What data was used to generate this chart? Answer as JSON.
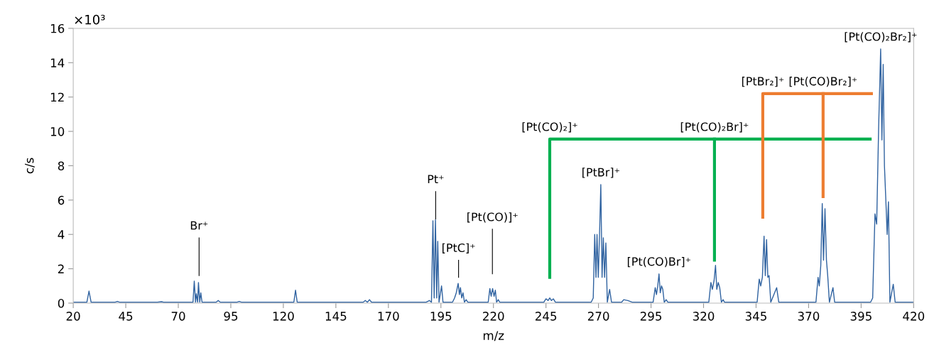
{
  "chart_data": {
    "type": "line",
    "xlabel": "m/z",
    "ylabel": "c/s",
    "xlim": [
      20,
      420
    ],
    "xticks": [
      20,
      45,
      70,
      95,
      120,
      145,
      170,
      195,
      220,
      245,
      270,
      295,
      320,
      345,
      370,
      395,
      420
    ],
    "ylim": [
      0,
      16
    ],
    "yticks": [
      0,
      2,
      4,
      6,
      8,
      10,
      12,
      14,
      16
    ],
    "grid": false,
    "legend": false,
    "marker": "none",
    "line_style": "solid",
    "series": [
      {
        "color": "#2f62a0",
        "x": [
          20,
          26.5,
          27.5,
          28.5,
          40,
          41,
          42,
          60,
          62,
          63,
          77,
          77.6,
          78.2,
          78.6,
          79.2,
          79.6,
          80.2,
          80.7,
          81.3,
          88,
          89,
          90,
          98,
          99,
          100,
          125,
          125.8,
          126.6,
          158,
          159,
          160,
          161,
          162,
          188,
          189.5,
          190.5,
          191.2,
          191.8,
          192.4,
          193.0,
          193.5,
          194.1,
          195.3,
          196,
          200.5,
          201.5,
          202.3,
          203.2,
          203.8,
          204.3,
          204.9,
          205.5,
          206.2,
          207,
          207.8,
          217.5,
          218.3,
          218.9,
          219.6,
          220.3,
          220.9,
          221.5,
          222.3,
          223,
          244,
          245,
          246,
          246.8,
          247.6,
          248.5,
          249.5,
          266.5,
          267.5,
          268.2,
          268.8,
          269.3,
          269.9,
          270.5,
          271.1,
          271.7,
          272.3,
          272.9,
          273.5,
          274.2,
          275.3,
          276.2,
          281,
          282,
          284,
          286,
          296,
          297,
          297.6,
          298.2,
          298.8,
          299.4,
          300,
          300.6,
          301.3,
          302.2,
          303,
          322.5,
          323.5,
          324.2,
          325,
          325.7,
          326.3,
          327,
          327.7,
          328.5,
          329.3,
          330,
          345.5,
          346.5,
          347.2,
          348,
          348.8,
          349.4,
          350,
          350.6,
          351.2,
          352,
          354.8,
          355.8,
          373.5,
          374.5,
          375.1,
          375.8,
          376.5,
          377.1,
          377.8,
          378.5,
          379.1,
          379.9,
          381.6,
          382.4,
          399.5,
          400.5,
          401.6,
          402.4,
          403.3,
          404.3,
          404.9,
          405.5,
          406.1,
          406.8,
          407.4,
          408,
          408.7,
          410.3,
          411.2,
          420
        ],
        "values": [
          0.05,
          0.05,
          0.7,
          0.05,
          0.05,
          0.1,
          0.05,
          0.05,
          0.08,
          0.05,
          0.05,
          1.28,
          0.05,
          0.55,
          0.05,
          1.2,
          0.05,
          0.6,
          0.05,
          0.05,
          0.15,
          0.05,
          0.05,
          0.1,
          0.05,
          0.05,
          0.75,
          0.05,
          0.05,
          0.15,
          0.05,
          0.2,
          0.05,
          0.05,
          0.15,
          0.05,
          4.8,
          0.3,
          4.85,
          0.3,
          3.6,
          0.05,
          1.0,
          0.05,
          0.05,
          0.3,
          0.6,
          1.15,
          0.5,
          0.9,
          0.3,
          0.6,
          0.05,
          0.2,
          0.05,
          0.05,
          0.85,
          0.4,
          0.85,
          0.4,
          0.75,
          0.05,
          0.2,
          0.05,
          0.05,
          0.25,
          0.15,
          0.3,
          0.15,
          0.25,
          0.05,
          0.05,
          0.3,
          4.0,
          1.5,
          4.0,
          1.5,
          4.0,
          6.9,
          1.5,
          3.8,
          1.5,
          3.5,
          0.05,
          0.8,
          0.05,
          0.05,
          0.2,
          0.15,
          0.05,
          0.05,
          0.9,
          0.5,
          1.0,
          1.7,
          0.6,
          1.0,
          0.8,
          0.05,
          0.2,
          0.05,
          0.05,
          1.2,
          0.8,
          1.3,
          2.2,
          0.8,
          1.2,
          0.9,
          0.05,
          0.2,
          0.05,
          0.05,
          1.4,
          1.0,
          1.5,
          3.9,
          1.6,
          3.7,
          1.5,
          1.6,
          0.05,
          0.9,
          0.05,
          0.05,
          1.5,
          1.0,
          2.2,
          5.8,
          2.5,
          5.5,
          2.5,
          1.6,
          0.05,
          0.9,
          0.05,
          0.05,
          0.3,
          5.2,
          4.6,
          10.0,
          14.8,
          9.5,
          13.9,
          8.0,
          5.9,
          4.0,
          5.9,
          0.05,
          1.1,
          0.05,
          0.05
        ]
      },
      {
        "color": "#00b050",
        "x": [
          246.8,
          246.8,
          399.3
        ],
        "values": [
          1.5,
          9.55,
          9.55
        ]
      },
      {
        "color": "#00b050",
        "x": [
          325.2,
          325.2
        ],
        "values": [
          9.55,
          2.5
        ]
      },
      {
        "color": "#ed7d31",
        "x": [
          348.2,
          348.2,
          399.9
        ],
        "values": [
          5.0,
          12.2,
          12.2
        ]
      },
      {
        "color": "#ed7d31",
        "x": [
          376.9,
          376.9
        ],
        "values": [
          12.2,
          6.2
        ]
      },
      {
        "color": "#000000",
        "x": [
          79.9,
          79.9
        ],
        "values": [
          3.8,
          1.6
        ]
      },
      {
        "color": "#000000",
        "x": [
          192.5,
          192.5
        ],
        "values": [
          6.5,
          4.9
        ]
      },
      {
        "color": "#000000",
        "x": [
          203.4,
          203.4
        ],
        "values": [
          2.5,
          1.5
        ]
      },
      {
        "color": "#000000",
        "x": [
          219.5,
          219.5
        ],
        "values": [
          4.3,
          1.7
        ]
      }
    ],
    "annotations": [
      "×10³",
      {
        "text": "Br⁺",
        "x": 79.9,
        "y": 3.8
      },
      {
        "text": "Pt⁺",
        "x": 192.5,
        "y": 6.5
      },
      {
        "text": "[PtC]⁺",
        "x": 203.4,
        "y": 2.5
      },
      {
        "text": "[Pt(CO)]⁺",
        "x": 219.5,
        "y": 4.3
      },
      {
        "text": "[Pt(CO)₂]⁺",
        "x": 246.8,
        "y": 9.55
      },
      {
        "text": "[PtBr]⁺",
        "x": 271.1,
        "y": 6.9
      },
      {
        "text": "[Pt(CO)Br]⁺",
        "x": 298.8,
        "y": 1.7
      },
      {
        "text": "[Pt(CO)₂Br]⁺",
        "x": 325.2,
        "y": 9.55
      },
      {
        "text": "[PtBr₂]⁺",
        "x": 348.2,
        "y": 12.2
      },
      {
        "text": "[Pt(CO)Br₂]⁺",
        "x": 376.9,
        "y": 12.2
      },
      {
        "text": "[Pt(CO)₂Br₂]⁺",
        "x": 404.3,
        "y": 14.8
      }
    ]
  }
}
